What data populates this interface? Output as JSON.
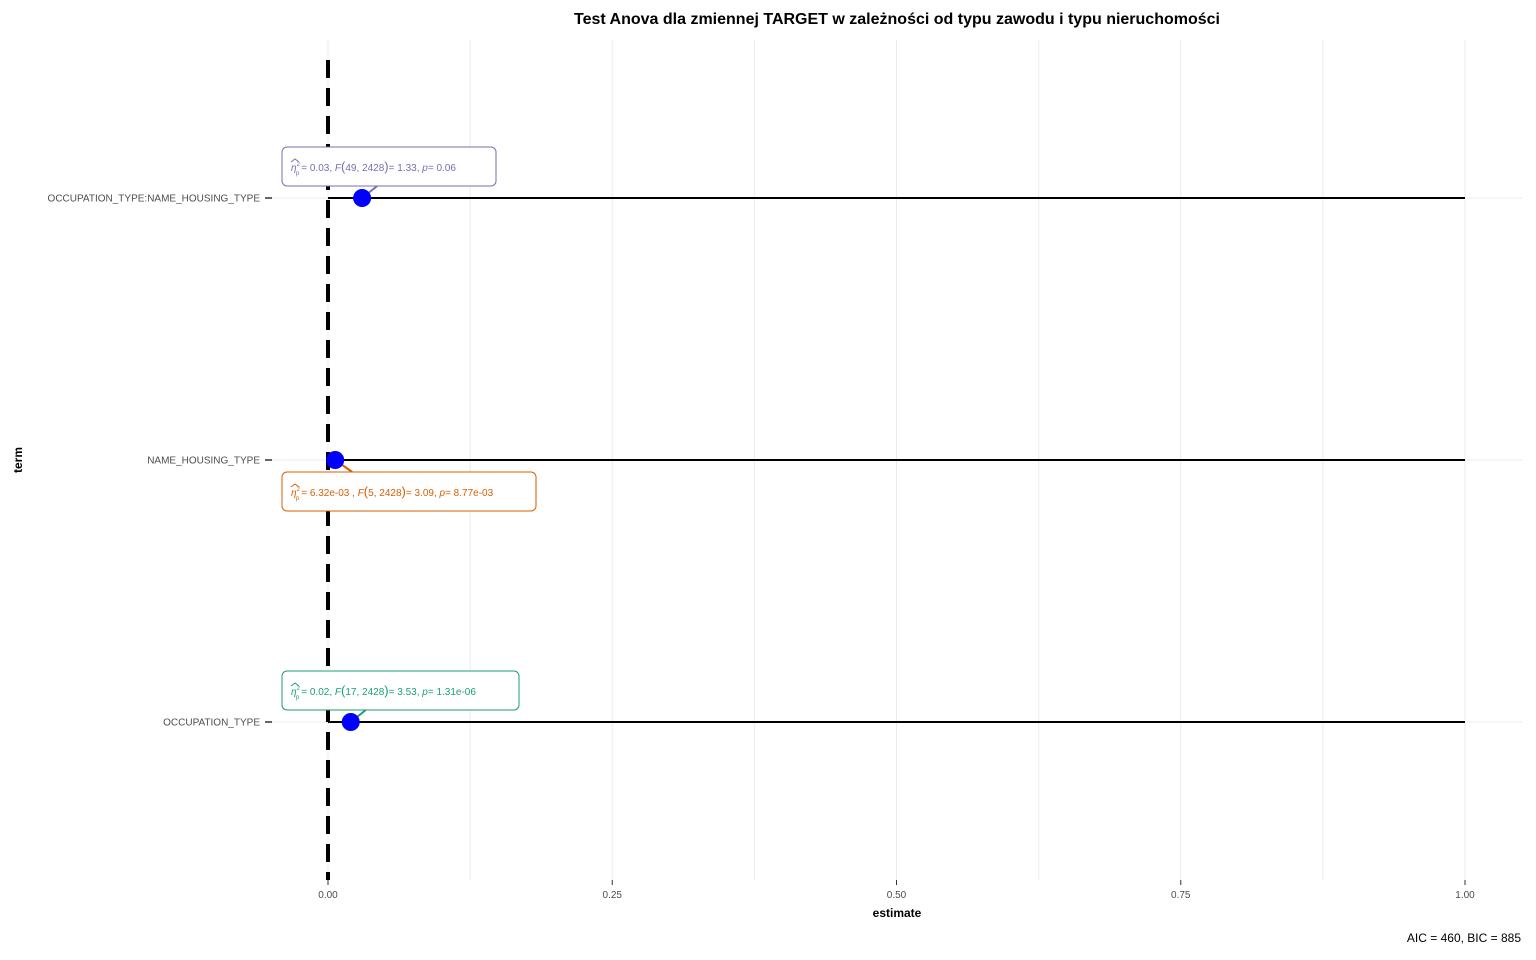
{
  "chart_data": {
    "type": "scatter",
    "title": "Test Anova dla zmiennej TARGET w zależności od typu zawodu i typu nieruchomości",
    "xlabel": "estimate",
    "ylabel": "term",
    "xlim": [
      0,
      1
    ],
    "x_ticks": [
      "0.00",
      "0.25",
      "0.50",
      "0.75",
      "1.00"
    ],
    "x_tick_values": [
      0,
      0.25,
      0.5,
      0.75,
      1.0
    ],
    "categories": [
      "OCCUPATION_TYPE:NAME_HOUSING_TYPE",
      "NAME_HOUSING_TYPE",
      "OCCUPATION_TYPE"
    ],
    "points": [
      {
        "term": "OCCUPATION_TYPE:NAME_HOUSING_TYPE",
        "estimate": 0.03,
        "ci": [
          0,
          1
        ],
        "label": {
          "symbol": "η",
          "sup": "2",
          "sub": "p",
          "es": "= 0.03, ",
          "f_name": "F",
          "f_args": "49, 2428",
          "f_val": "= 1.33, ",
          "p_name": "p",
          "p_val": "= 0.06"
        },
        "color": "#7570b3"
      },
      {
        "term": "NAME_HOUSING_TYPE",
        "estimate": 0.00632,
        "ci": [
          0,
          1
        ],
        "label": {
          "symbol": "η",
          "sup": "2",
          "sub": "p",
          "es": "= 6.32e-03 , ",
          "f_name": "F",
          "f_args": "5, 2428",
          "f_val": "=  3.09, ",
          "p_name": "p",
          "p_val": "=  8.77e-03"
        },
        "color": "#d95f02"
      },
      {
        "term": "OCCUPATION_TYPE",
        "estimate": 0.02,
        "ci": [
          0,
          1
        ],
        "label": {
          "symbol": "η",
          "sup": "2",
          "sub": "p",
          "es": "= 0.02, ",
          "f_name": "F",
          "f_args": "17, 2428",
          "f_val": "= 3.53, ",
          "p_name": "p",
          "p_val": "= 1.31e-06"
        },
        "color": "#1b9e77"
      }
    ],
    "point_color": "#0000ff",
    "reference_line": 0,
    "grid": true,
    "caption": "AIC = 460, BIC = 885"
  }
}
